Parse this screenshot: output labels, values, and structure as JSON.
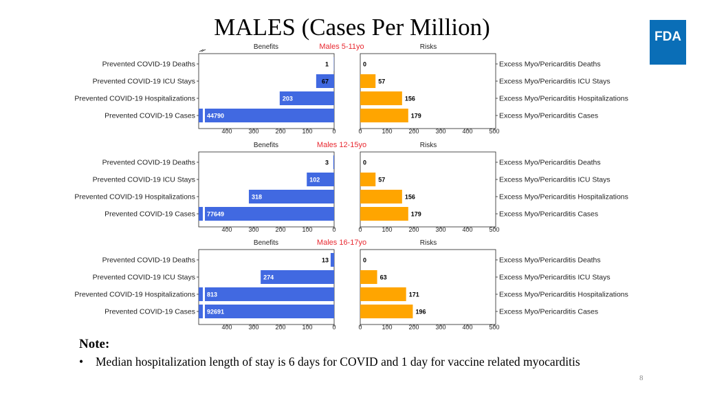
{
  "slide_title": "MALES (Cases Per Million)",
  "logo_text": "FDA",
  "note": {
    "heading": "Note:",
    "bullet": "Median hospitalization length of stay is 6 days for COVID and 1 day for vaccine related myocarditis"
  },
  "page_number": "8",
  "colors": {
    "benefit_bar": "#4169e1",
    "risk_bar": "#ffa500",
    "panel_title": "#e8272f",
    "logo_bg": "#0a6eb7"
  },
  "chart_data": [
    {
      "type": "bar",
      "title": "Males 5-11yo",
      "left_label": "Benefits",
      "right_label": "Risks",
      "benefit_categories": [
        "Prevented COVID-19 Deaths",
        "Prevented COVID-19 ICU Stays",
        "Prevented COVID-19 Hospitalizations",
        "Prevented COVID-19 Cases"
      ],
      "risk_categories": [
        "Excess Myo/Pericarditis Deaths",
        "Excess Myo/Pericarditis ICU Stays",
        "Excess Myo/Pericarditis Hospitalizations",
        "Excess Myo/Pericarditis Cases"
      ],
      "benefit_values": [
        1,
        67,
        203,
        44790
      ],
      "risk_values": [
        0,
        57,
        156,
        179
      ],
      "xlim": [
        0,
        500
      ],
      "ticks": [
        0,
        100,
        200,
        300,
        400,
        500
      ],
      "benefit_ticks": [
        400,
        300,
        200,
        100,
        0
      ],
      "axis_break": true
    },
    {
      "type": "bar",
      "title": "Males 12-15yo",
      "left_label": "Benefits",
      "right_label": "Risks",
      "benefit_categories": [
        "Prevented COVID-19 Deaths",
        "Prevented COVID-19 ICU Stays",
        "Prevented COVID-19 Hospitalizations",
        "Prevented COVID-19 Cases"
      ],
      "risk_categories": [
        "Excess Myo/Pericarditis Deaths",
        "Excess Myo/Pericarditis ICU Stays",
        "Excess Myo/Pericarditis Hospitalizations",
        "Excess Myo/Pericarditis Cases"
      ],
      "benefit_values": [
        3,
        102,
        318,
        77649
      ],
      "risk_values": [
        0,
        57,
        156,
        179
      ],
      "xlim": [
        0,
        500
      ],
      "ticks": [
        0,
        100,
        200,
        300,
        400,
        500
      ],
      "benefit_ticks": [
        400,
        300,
        200,
        100,
        0
      ],
      "axis_break": false
    },
    {
      "type": "bar",
      "title": "Males 16-17yo",
      "left_label": "Benefits",
      "right_label": "Risks",
      "benefit_categories": [
        "Prevented COVID-19 Deaths",
        "Prevented COVID-19 ICU Stays",
        "Prevented COVID-19 Hospitalizations",
        "Prevented COVID-19 Cases"
      ],
      "risk_categories": [
        "Excess Myo/Pericarditis Deaths",
        "Excess Myo/Pericarditis ICU Stays",
        "Excess Myo/Pericarditis Hospitalizations",
        "Excess Myo/Pericarditis Cases"
      ],
      "benefit_values": [
        13,
        274,
        813,
        92691
      ],
      "risk_values": [
        0,
        63,
        171,
        196
      ],
      "xlim": [
        0,
        500
      ],
      "ticks": [
        0,
        100,
        200,
        300,
        400,
        500
      ],
      "benefit_ticks": [
        400,
        300,
        200,
        100,
        0
      ],
      "axis_break": false
    }
  ]
}
